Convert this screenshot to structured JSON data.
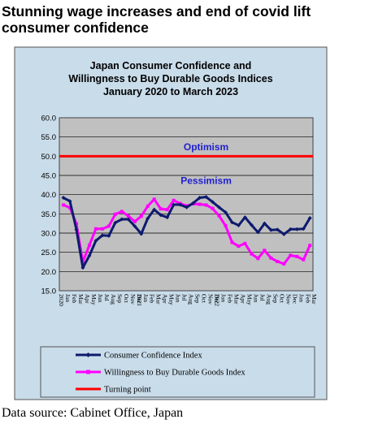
{
  "headline": "Stunning wage increases and end of covid lift consumer confidence",
  "source": "Data source: Cabinet Office, Japan",
  "colors": {
    "frame_bg": "#c9dcea",
    "plot_bg": "#c0c0c0",
    "legend_bg": "#c9dcea",
    "title_text": "#000000",
    "consumer": "#0e1a6e",
    "durable": "#ff00ff",
    "turning": "#ff0000",
    "label_text": "#1f1fd0"
  },
  "chart_data": {
    "type": "line",
    "title": "Japan Consumer Confidence and",
    "title_line2": "Willingness to Buy Durable Goods Indices",
    "subtitle": "January 2020 to March 2023",
    "ylim": [
      15.0,
      60.0
    ],
    "yticks": [
      "15.0",
      "20.0",
      "25.0",
      "30.0",
      "35.0",
      "40.0",
      "45.0",
      "50.0",
      "55.0",
      "60.0"
    ],
    "ytick_values": [
      15,
      20,
      25,
      30,
      35,
      40,
      45,
      50,
      55,
      60
    ],
    "x_month_labels": [
      "Jan",
      "Feb",
      "Mar",
      "Apr",
      "May",
      "Jun",
      "Jul",
      "Aug",
      "Sep",
      "Oct",
      "Nov",
      "Dec",
      "Jan",
      "Feb",
      "Mar",
      "Apr",
      "May",
      "Jun",
      "Jul",
      "Aug",
      "Sep",
      "Oct",
      "Nov",
      "Dec",
      "Jan",
      "Feb",
      "Mar",
      "Apr",
      "May",
      "Jun",
      "Jul",
      "Aug",
      "Sep",
      "Oct",
      "Nov",
      "Dec",
      "Jan",
      "Feb",
      "Mar"
    ],
    "x_year_labels": [
      {
        "index": 0,
        "label": "2020"
      },
      {
        "index": 12,
        "label": "2021"
      },
      {
        "index": 24,
        "label": "2022"
      }
    ],
    "grid": "horizontal",
    "legend_position": "bottom",
    "annotations": [
      {
        "text": "Optimism",
        "x_index": 22,
        "y": 51.6
      },
      {
        "text": "Pessimism",
        "x_index": 22,
        "y": 42.8
      }
    ],
    "series": [
      {
        "name": "Consumer Confidence Index",
        "values": [
          39.2,
          38.3,
          30.9,
          21.0,
          24.1,
          28.0,
          29.4,
          29.3,
          32.7,
          33.6,
          33.6,
          31.8,
          29.8,
          33.8,
          36.1,
          34.7,
          34.1,
          37.4,
          37.4,
          36.7,
          37.8,
          39.2,
          39.4,
          38.1,
          36.7,
          35.4,
          32.8,
          32.0,
          34.1,
          32.1,
          30.2,
          32.5,
          30.8,
          30.9,
          29.7,
          31.0,
          31.0,
          31.1,
          33.9
        ]
      },
      {
        "name": "Willingness to Buy Durable Goods Index",
        "values": [
          37.3,
          36.6,
          32.4,
          22.5,
          26.8,
          31.1,
          31.1,
          31.8,
          34.9,
          35.6,
          34.5,
          33.0,
          34.4,
          37.0,
          38.8,
          36.3,
          36.1,
          38.5,
          37.7,
          37.1,
          37.6,
          37.5,
          37.3,
          36.4,
          34.5,
          31.9,
          27.6,
          26.6,
          27.3,
          24.6,
          23.4,
          25.5,
          23.5,
          22.6,
          22.0,
          24.2,
          23.9,
          23.1,
          26.8
        ]
      },
      {
        "name": "Turning point",
        "values": [
          50,
          50
        ]
      }
    ]
  }
}
